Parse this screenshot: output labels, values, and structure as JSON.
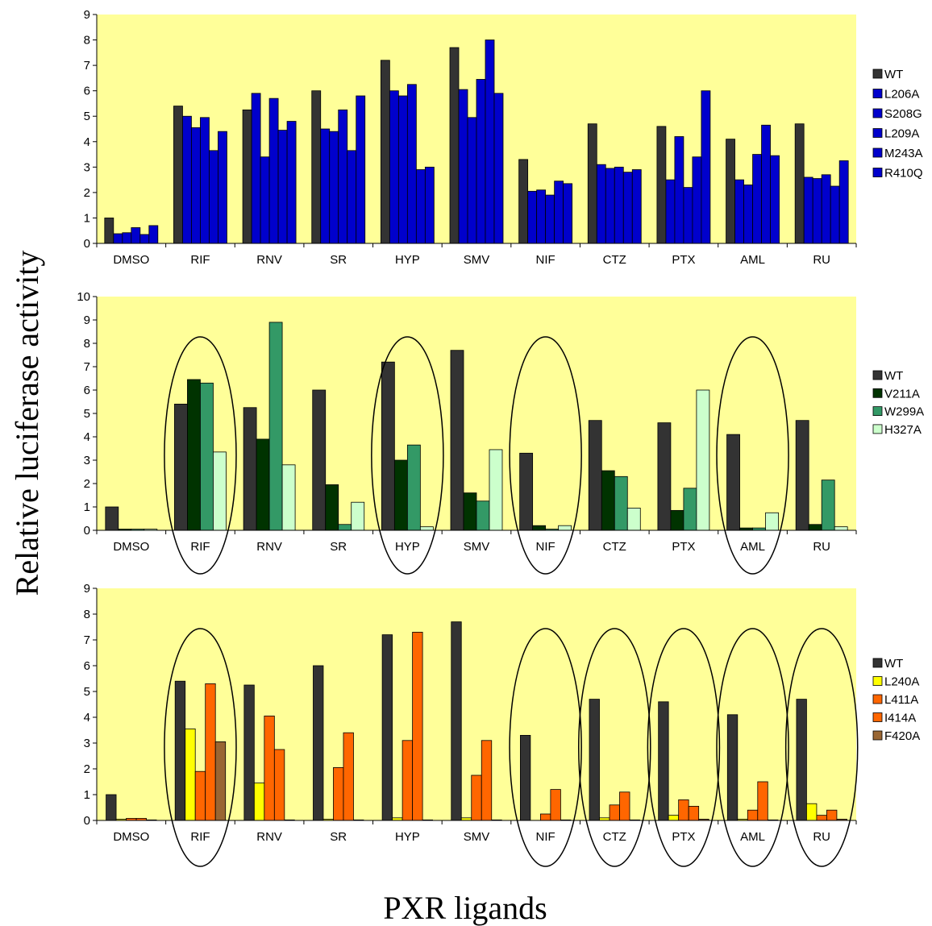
{
  "figure": {
    "ylabel": "Relative luciferase activity",
    "xlabel": "PXR ligands"
  },
  "colors": {
    "plot_bg": "#ffff99",
    "WT": "#333333",
    "blue": "#0000cc",
    "V211A": "#003300",
    "W299A": "#339966",
    "H327A": "#ccffcc",
    "L240A": "#ffff00",
    "L411A": "#ff6600",
    "I414A": "#ff6600",
    "F420A": "#996633"
  },
  "chart_data": [
    {
      "type": "bar",
      "categories": [
        "DMSO",
        "RIF",
        "RNV",
        "SR",
        "HYP",
        "SMV",
        "NIF",
        "CTZ",
        "PTX",
        "AML",
        "RU"
      ],
      "ylim": [
        0,
        9
      ],
      "yticks": [
        0,
        1,
        2,
        3,
        4,
        5,
        6,
        7,
        8,
        9
      ],
      "grid": false,
      "legend_position": "right",
      "series": [
        {
          "name": "WT",
          "color": "#333333",
          "values": [
            1.0,
            5.4,
            5.25,
            6.0,
            7.2,
            7.7,
            3.3,
            4.7,
            4.6,
            4.1,
            4.7
          ]
        },
        {
          "name": "L206A",
          "color": "#0000cc",
          "values": [
            0.38,
            5.0,
            5.9,
            4.5,
            6.0,
            6.05,
            2.05,
            3.1,
            2.5,
            2.5,
            2.6
          ]
        },
        {
          "name": "S208G",
          "color": "#0000cc",
          "values": [
            0.42,
            4.55,
            3.4,
            4.4,
            5.8,
            4.95,
            2.1,
            2.95,
            4.2,
            2.3,
            2.55
          ]
        },
        {
          "name": "L209A",
          "color": "#0000cc",
          "values": [
            0.62,
            4.95,
            5.7,
            5.25,
            6.25,
            6.45,
            1.9,
            3.0,
            2.2,
            3.5,
            2.7
          ]
        },
        {
          "name": "M243A",
          "color": "#0000cc",
          "values": [
            0.35,
            3.65,
            4.45,
            3.65,
            2.9,
            8.0,
            2.45,
            2.8,
            3.4,
            4.65,
            2.25
          ]
        },
        {
          "name": "R410Q",
          "color": "#0000cc",
          "values": [
            0.7,
            4.4,
            4.8,
            5.8,
            3.0,
            5.9,
            2.35,
            2.9,
            6.0,
            3.45,
            3.25
          ]
        }
      ],
      "circled": []
    },
    {
      "type": "bar",
      "categories": [
        "DMSO",
        "RIF",
        "RNV",
        "SR",
        "HYP",
        "SMV",
        "NIF",
        "CTZ",
        "PTX",
        "AML",
        "RU"
      ],
      "ylim": [
        0,
        10
      ],
      "yticks": [
        0,
        1,
        2,
        3,
        4,
        5,
        6,
        7,
        8,
        9,
        10
      ],
      "grid": false,
      "legend_position": "right",
      "series": [
        {
          "name": "WT",
          "color": "#333333",
          "values": [
            1.0,
            5.4,
            5.25,
            6.0,
            7.2,
            7.7,
            3.3,
            4.7,
            4.6,
            4.1,
            4.7
          ]
        },
        {
          "name": "V211A",
          "color": "#003300",
          "values": [
            0.05,
            6.45,
            3.9,
            1.95,
            3.0,
            1.6,
            0.2,
            2.55,
            0.85,
            0.1,
            0.25
          ]
        },
        {
          "name": "W299A",
          "color": "#339966",
          "values": [
            0.05,
            6.3,
            8.9,
            0.25,
            3.65,
            1.25,
            0.05,
            2.3,
            1.8,
            0.1,
            2.15
          ]
        },
        {
          "name": "H327A",
          "color": "#ccffcc",
          "values": [
            0.05,
            3.35,
            2.8,
            1.2,
            0.15,
            3.45,
            0.2,
            0.95,
            6.0,
            0.75,
            0.15
          ]
        }
      ],
      "circled": [
        "RIF",
        "HYP",
        "NIF",
        "AML"
      ]
    },
    {
      "type": "bar",
      "categories": [
        "DMSO",
        "RIF",
        "RNV",
        "SR",
        "HYP",
        "SMV",
        "NIF",
        "CTZ",
        "PTX",
        "AML",
        "RU"
      ],
      "ylim": [
        0,
        9
      ],
      "yticks": [
        0,
        1,
        2,
        3,
        4,
        5,
        6,
        7,
        8,
        9
      ],
      "grid": false,
      "legend_position": "right",
      "series": [
        {
          "name": "WT",
          "color": "#333333",
          "values": [
            1.0,
            5.4,
            5.25,
            6.0,
            7.2,
            7.7,
            3.3,
            4.7,
            4.6,
            4.1,
            4.7
          ]
        },
        {
          "name": "L240A",
          "color": "#ffff00",
          "values": [
            0.05,
            3.55,
            1.45,
            0.05,
            0.1,
            0.1,
            0.0,
            0.1,
            0.2,
            0.05,
            0.65
          ]
        },
        {
          "name": "L411A",
          "color": "#ff6600",
          "values": [
            0.08,
            1.9,
            4.05,
            2.05,
            3.1,
            1.75,
            0.25,
            0.6,
            0.8,
            0.4,
            0.2
          ]
        },
        {
          "name": "I414A",
          "color": "#ff6600",
          "values": [
            0.08,
            5.3,
            2.75,
            3.4,
            7.3,
            3.1,
            1.2,
            1.1,
            0.55,
            1.5,
            0.4
          ]
        },
        {
          "name": "F420A",
          "color": "#996633",
          "values": [
            0.02,
            3.05,
            0.02,
            0.02,
            0.02,
            0.02,
            0.02,
            0.02,
            0.05,
            0.02,
            0.05
          ]
        }
      ],
      "circled": [
        "RIF",
        "NIF",
        "CTZ",
        "PTX",
        "AML",
        "RU"
      ]
    }
  ]
}
